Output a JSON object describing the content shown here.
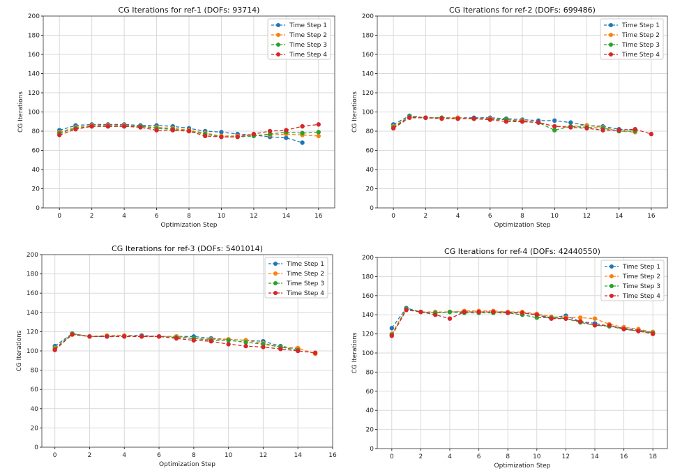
{
  "chart_data": [
    {
      "type": "line",
      "title": "CG Iterations for ref-1 (DOFs: 93714)",
      "xlabel": "Optimization Step",
      "ylabel": "CG Iterations",
      "xlim": [
        -1,
        17
      ],
      "ylim": [
        0,
        200
      ],
      "xticks": [
        0,
        2,
        4,
        6,
        8,
        10,
        12,
        14,
        16
      ],
      "yticks": [
        0,
        20,
        40,
        60,
        80,
        100,
        120,
        140,
        160,
        180,
        200
      ],
      "grid": true,
      "legend": "top-right",
      "series": [
        {
          "name": "Time Step 1",
          "x": [
            0,
            1,
            2,
            3,
            4,
            5,
            6,
            7,
            8,
            9,
            10,
            11,
            12,
            13,
            14,
            15
          ],
          "values": [
            81,
            86,
            87,
            87,
            87,
            86,
            86,
            85,
            83,
            80,
            79,
            77,
            76,
            74,
            73,
            68
          ]
        },
        {
          "name": "Time Step 2",
          "x": [
            0,
            1,
            2,
            3,
            4,
            5,
            6,
            7,
            8,
            9,
            10,
            11,
            12,
            13,
            14,
            15,
            16
          ],
          "values": [
            79,
            84,
            86,
            86,
            86,
            85,
            84,
            83,
            81,
            78,
            75,
            75,
            76,
            76,
            77,
            76,
            75
          ]
        },
        {
          "name": "Time Step 3",
          "x": [
            0,
            1,
            2,
            3,
            4,
            5,
            6,
            7,
            8,
            9,
            10,
            11,
            12,
            13,
            14,
            15,
            16
          ],
          "values": [
            78,
            83,
            85,
            85,
            85,
            85,
            83,
            82,
            80,
            77,
            74,
            74,
            75,
            77,
            79,
            78,
            79
          ]
        },
        {
          "name": "Time Step 4",
          "x": [
            0,
            1,
            2,
            3,
            4,
            5,
            6,
            7,
            8,
            9,
            10,
            11,
            12,
            13,
            14,
            15,
            16
          ],
          "values": [
            76,
            82,
            85,
            85,
            85,
            84,
            81,
            81,
            80,
            75,
            74,
            74,
            77,
            80,
            81,
            85,
            87
          ]
        }
      ]
    },
    {
      "type": "line",
      "title": "CG Iterations for ref-2 (DOFs: 699486)",
      "xlabel": "Optimization Step",
      "ylabel": "CG Iterations",
      "xlim": [
        -1,
        17
      ],
      "ylim": [
        0,
        200
      ],
      "xticks": [
        0,
        2,
        4,
        6,
        8,
        10,
        12,
        14,
        16
      ],
      "yticks": [
        0,
        20,
        40,
        60,
        80,
        100,
        120,
        140,
        160,
        180,
        200
      ],
      "grid": true,
      "legend": "top-right",
      "series": [
        {
          "name": "Time Step 1",
          "x": [
            0,
            1,
            2,
            3,
            4,
            5,
            6,
            7,
            8,
            9,
            10,
            11,
            12,
            13,
            14,
            15
          ],
          "values": [
            87,
            96,
            94,
            94,
            94,
            94,
            94,
            93,
            92,
            91,
            91,
            89,
            86,
            85,
            82,
            81
          ]
        },
        {
          "name": "Time Step 2",
          "x": [
            0,
            1,
            2,
            3,
            4,
            5,
            6,
            7,
            8,
            9,
            10,
            11,
            12,
            13,
            14,
            15
          ],
          "values": [
            85,
            95,
            94,
            94,
            94,
            93,
            93,
            92,
            91,
            89,
            85,
            85,
            86,
            84,
            80,
            79
          ]
        },
        {
          "name": "Time Step 3",
          "x": [
            0,
            1,
            2,
            3,
            4,
            5,
            6,
            7,
            8,
            9,
            10,
            11,
            12,
            13,
            14,
            15
          ],
          "values": [
            84,
            95,
            94,
            94,
            93,
            93,
            92,
            92,
            90,
            89,
            81,
            85,
            84,
            83,
            80,
            80
          ]
        },
        {
          "name": "Time Step 4",
          "x": [
            0,
            1,
            2,
            3,
            4,
            5,
            6,
            7,
            8,
            9,
            10,
            11,
            12,
            13,
            14,
            15,
            16
          ],
          "values": [
            83,
            94,
            94,
            93,
            93,
            93,
            92,
            90,
            90,
            89,
            85,
            84,
            83,
            81,
            81,
            82,
            77
          ]
        }
      ]
    },
    {
      "type": "line",
      "title": "CG Iterations for ref-3 (DOFs: 5401014)",
      "xlabel": "Optimization Step",
      "ylabel": "CG Iterations",
      "xlim": [
        -0.75,
        16
      ],
      "ylim": [
        0,
        200
      ],
      "xticks": [
        0,
        2,
        4,
        6,
        8,
        10,
        12,
        14,
        16
      ],
      "yticks": [
        0,
        20,
        40,
        60,
        80,
        100,
        120,
        140,
        160,
        180,
        200
      ],
      "grid": true,
      "legend": "top-right",
      "series": [
        {
          "name": "Time Step 1",
          "x": [
            0,
            1,
            2,
            3,
            4,
            5,
            6,
            7,
            8,
            9,
            10,
            11,
            12,
            13,
            14
          ],
          "values": [
            105,
            118,
            115,
            115,
            116,
            116,
            115,
            115,
            115,
            113,
            112,
            111,
            110,
            105,
            102
          ]
        },
        {
          "name": "Time Step 2",
          "x": [
            0,
            1,
            2,
            3,
            4,
            5,
            6,
            7,
            8,
            9,
            10,
            11,
            12,
            13,
            14,
            15
          ],
          "values": [
            103,
            117,
            115,
            116,
            116,
            115,
            115,
            115,
            113,
            112,
            112,
            111,
            108,
            104,
            103,
            97
          ]
        },
        {
          "name": "Time Step 3",
          "x": [
            0,
            1,
            2,
            3,
            4,
            5,
            6,
            7,
            8,
            9,
            10,
            11,
            12,
            13,
            14
          ],
          "values": [
            102,
            118,
            115,
            115,
            115,
            115,
            115,
            114,
            113,
            111,
            111,
            109,
            107,
            104,
            101
          ]
        },
        {
          "name": "Time Step 4",
          "x": [
            0,
            1,
            2,
            3,
            4,
            5,
            6,
            7,
            8,
            9,
            10,
            11,
            12,
            13,
            14,
            15
          ],
          "values": [
            101,
            117,
            115,
            115,
            115,
            115,
            115,
            113,
            111,
            110,
            107,
            105,
            104,
            102,
            100,
            98
          ]
        }
      ]
    },
    {
      "type": "line",
      "title": "CG Iterations for ref-4 (DOFs: 42440550)",
      "xlabel": "Optimization Step",
      "ylabel": "CG Iterations",
      "xlim": [
        -1,
        19
      ],
      "ylim": [
        0,
        200
      ],
      "xticks": [
        0,
        2,
        4,
        6,
        8,
        10,
        12,
        14,
        16,
        18
      ],
      "yticks": [
        0,
        20,
        40,
        60,
        80,
        100,
        120,
        140,
        160,
        180,
        200
      ],
      "grid": true,
      "legend": "top-right",
      "series": [
        {
          "name": "Time Step 1",
          "x": [
            0,
            1,
            2,
            3,
            4,
            5,
            6,
            7,
            8,
            9,
            10,
            11,
            12,
            13,
            14,
            15,
            16,
            17,
            18
          ],
          "values": [
            126,
            147,
            143,
            142,
            143,
            143,
            143,
            143,
            143,
            142,
            140,
            137,
            139,
            133,
            131,
            128,
            126,
            124,
            121
          ]
        },
        {
          "name": "Time Step 2",
          "x": [
            0,
            1,
            2,
            3,
            4,
            5,
            6,
            7,
            8,
            9,
            10,
            11,
            12,
            13,
            14,
            15,
            16,
            17,
            18
          ],
          "values": [
            120,
            146,
            143,
            143,
            143,
            144,
            144,
            144,
            143,
            143,
            141,
            138,
            137,
            137,
            136,
            130,
            127,
            125,
            122
          ]
        },
        {
          "name": "Time Step 3",
          "x": [
            0,
            1,
            2,
            3,
            4,
            5,
            6,
            7,
            8,
            9,
            10,
            11,
            12,
            13,
            14,
            15,
            16,
            17,
            18
          ],
          "values": [
            119,
            146,
            143,
            142,
            143,
            142,
            142,
            142,
            142,
            140,
            137,
            137,
            136,
            132,
            129,
            128,
            125,
            123,
            121
          ]
        },
        {
          "name": "Time Step 4",
          "x": [
            0,
            1,
            2,
            3,
            4,
            5,
            6,
            7,
            8,
            9,
            10,
            11,
            12,
            13,
            14,
            15,
            16,
            17,
            18
          ],
          "values": [
            118,
            145,
            143,
            140,
            136,
            143,
            143,
            143,
            142,
            142,
            140,
            136,
            136,
            133,
            129,
            129,
            125,
            123,
            120
          ]
        }
      ]
    }
  ],
  "colors": [
    "#1f77b4",
    "#ff7f0e",
    "#2ca02c",
    "#d62728"
  ]
}
